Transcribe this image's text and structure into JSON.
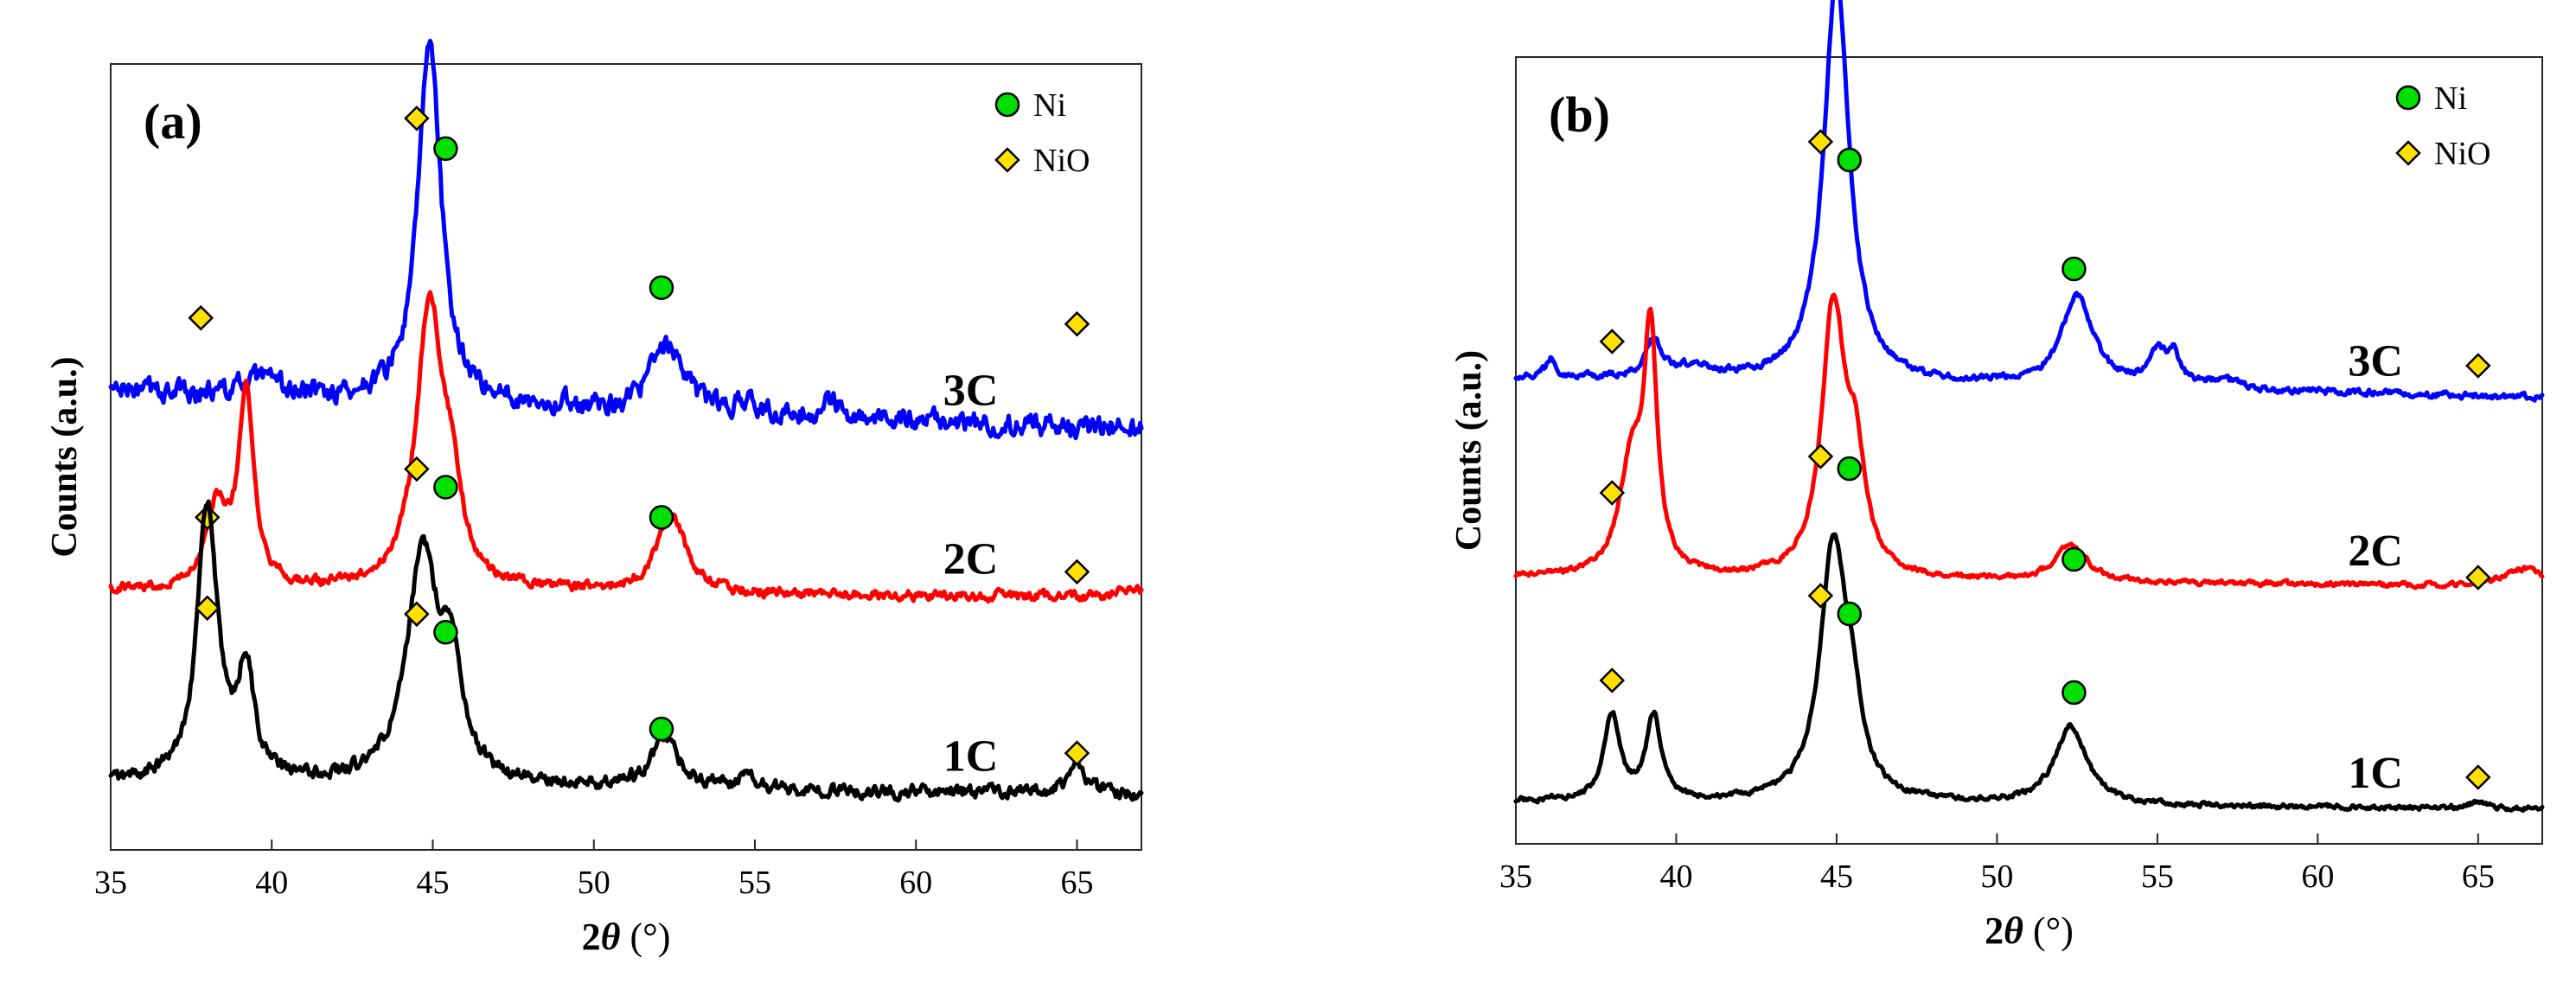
{
  "chart_data": [
    {
      "type": "line",
      "panel_label": "(a)",
      "xlabel_main": "2",
      "xlabel_theta": "θ",
      "xlabel_unit": " (°)",
      "ylabel": "Counts (a.u.)",
      "xlim": [
        35,
        67
      ],
      "x_ticks": [
        35,
        40,
        45,
        50,
        55,
        60,
        65
      ],
      "legend": [
        {
          "marker": "ni",
          "label": "Ni"
        },
        {
          "marker": "nio",
          "label": "NiO"
        }
      ],
      "series": [
        {
          "name": "3C",
          "color": "#0000ff",
          "baseline": 0.76,
          "noise": 0.013,
          "slope": -0.002,
          "peaks": [
            [
              39.6,
              0.025,
              0.6
            ],
            [
              44.9,
              0.6,
              0.42
            ],
            [
              52.3,
              0.11,
              0.6
            ],
            [
              54.7,
              0.02,
              0.25
            ],
            [
              57.3,
              0.03,
              0.25
            ]
          ],
          "markers": [
            {
              "type": "nio",
              "x": 37.8,
              "y": 0.88
            },
            {
              "type": "nio",
              "x": 44.5,
              "y": 1.21
            },
            {
              "type": "ni",
              "x": 45.4,
              "y": 1.16
            },
            {
              "type": "ni",
              "x": 52.1,
              "y": 0.93
            },
            {
              "type": "nio",
              "x": 65.0,
              "y": 0.87
            }
          ]
        },
        {
          "name": "2C",
          "color": "#ff0000",
          "baseline": 0.43,
          "noise": 0.006,
          "slope": -0.0004,
          "peaks": [
            [
              38.3,
              0.13,
              0.4
            ],
            [
              39.2,
              0.32,
              0.28
            ],
            [
              44.9,
              0.47,
              0.5
            ],
            [
              45.6,
              0.12,
              0.35
            ],
            [
              52.4,
              0.13,
              0.55
            ],
            [
              66.6,
              0.01,
              0.6
            ]
          ],
          "markers": [
            {
              "type": "nio",
              "x": 38.0,
              "y": 0.55
            },
            {
              "type": "nio",
              "x": 44.5,
              "y": 0.63
            },
            {
              "type": "ni",
              "x": 45.4,
              "y": 0.6
            },
            {
              "type": "ni",
              "x": 52.1,
              "y": 0.55
            },
            {
              "type": "nio",
              "x": 65.0,
              "y": 0.46
            }
          ]
        },
        {
          "name": "1C",
          "color": "#000000",
          "baseline": 0.11,
          "noise": 0.008,
          "slope": -0.0006,
          "peaks": [
            [
              38.0,
              0.46,
              0.38
            ],
            [
              39.2,
              0.18,
              0.3
            ],
            [
              44.7,
              0.38,
              0.6
            ],
            [
              45.6,
              0.17,
              0.35
            ],
            [
              52.2,
              0.08,
              0.55
            ],
            [
              54.8,
              0.02,
              0.3
            ],
            [
              65.0,
              0.05,
              0.35
            ]
          ],
          "markers": [
            {
              "type": "nio",
              "x": 38.0,
              "y": 0.4
            },
            {
              "type": "nio",
              "x": 44.5,
              "y": 0.39
            },
            {
              "type": "ni",
              "x": 45.4,
              "y": 0.36
            },
            {
              "type": "ni",
              "x": 52.1,
              "y": 0.2
            },
            {
              "type": "nio",
              "x": 65.0,
              "y": 0.16
            }
          ]
        }
      ]
    },
    {
      "type": "line",
      "panel_label": "(b)",
      "xlabel_main": "2",
      "xlabel_theta": "θ",
      "xlabel_unit": " (°)",
      "ylabel": "Counts (a.u.)",
      "xlim": [
        35,
        67
      ],
      "x_ticks": [
        35,
        40,
        45,
        50,
        55,
        60,
        65
      ],
      "legend": [
        {
          "marker": "ni",
          "label": "Ni"
        },
        {
          "marker": "nio",
          "label": "NiO"
        }
      ],
      "series": [
        {
          "name": "3C",
          "color": "#0000ff",
          "baseline": 0.77,
          "noise": 0.004,
          "slope": -0.001,
          "peaks": [
            [
              36.1,
              0.03,
              0.2
            ],
            [
              39.3,
              0.06,
              0.28
            ],
            [
              40.5,
              0.02,
              0.8
            ],
            [
              45.0,
              0.67,
              0.48
            ],
            [
              52.5,
              0.15,
              0.6
            ],
            [
              55.0,
              0.05,
              0.32
            ],
            [
              55.5,
              0.05,
              0.25
            ],
            [
              57.0,
              0.015,
              0.6
            ]
          ],
          "markers": [
            {
              "type": "nio",
              "x": 38.0,
              "y": 0.83
            },
            {
              "type": "nio",
              "x": 44.5,
              "y": 1.16
            },
            {
              "type": "ni",
              "x": 45.4,
              "y": 1.13
            },
            {
              "type": "ni",
              "x": 52.4,
              "y": 0.95
            },
            {
              "type": "nio",
              "x": 65.0,
              "y": 0.79
            }
          ]
        },
        {
          "name": "2C",
          "color": "#ff0000",
          "baseline": 0.44,
          "noise": 0.003,
          "slope": -0.0005,
          "peaks": [
            [
              38.6,
              0.18,
              0.45
            ],
            [
              39.2,
              0.38,
              0.25
            ],
            [
              44.9,
              0.44,
              0.45
            ],
            [
              45.6,
              0.16,
              0.35
            ],
            [
              52.3,
              0.06,
              0.6
            ],
            [
              66.4,
              0.03,
              0.8
            ]
          ],
          "markers": [
            {
              "type": "nio",
              "x": 38.0,
              "y": 0.58
            },
            {
              "type": "nio",
              "x": 44.5,
              "y": 0.64
            },
            {
              "type": "ni",
              "x": 45.4,
              "y": 0.62
            },
            {
              "type": "ni",
              "x": 52.4,
              "y": 0.47
            },
            {
              "type": "nio",
              "x": 65.0,
              "y": 0.44
            }
          ]
        },
        {
          "name": "1C",
          "color": "#000000",
          "baseline": 0.07,
          "noise": 0.003,
          "slope": -0.0004,
          "peaks": [
            [
              38.0,
              0.14,
              0.3
            ],
            [
              39.3,
              0.14,
              0.28
            ],
            [
              44.9,
              0.42,
              0.5
            ],
            [
              45.5,
              0.1,
              0.35
            ],
            [
              52.3,
              0.13,
              0.6
            ],
            [
              65.0,
              0.01,
              0.4
            ]
          ],
          "markers": [
            {
              "type": "nio",
              "x": 38.0,
              "y": 0.27
            },
            {
              "type": "nio",
              "x": 44.5,
              "y": 0.41
            },
            {
              "type": "ni",
              "x": 45.4,
              "y": 0.38
            },
            {
              "type": "ni",
              "x": 52.4,
              "y": 0.25
            },
            {
              "type": "nio",
              "x": 65.0,
              "y": 0.11
            }
          ]
        }
      ]
    }
  ]
}
